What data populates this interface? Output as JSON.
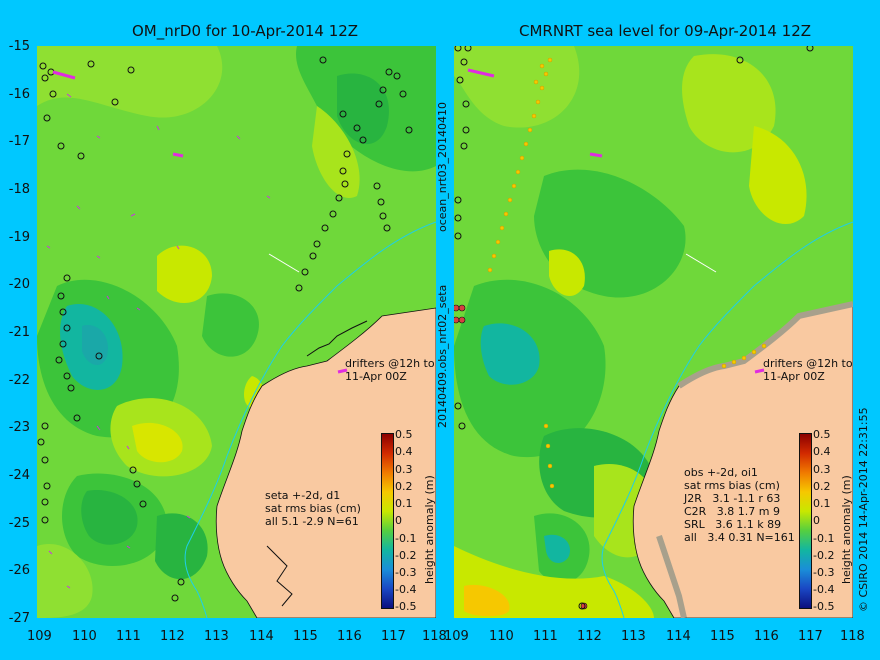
{
  "left_panel": {
    "title": "OM_nrD0 for 10-Apr-2014 12Z",
    "drifters": "drifters @12h to\n11-Apr 00Z",
    "stats": "seta +-2d, d1\nsat rms bias (cm)\nall 5.1 -2.9 N=61"
  },
  "right_panel": {
    "title": "CMRNRT sea level  for 09-Apr-2014 12Z",
    "drifters": "drifters @12h to\n11-Apr 00Z",
    "stats": "obs +-2d, oi1\nsat rms bias (cm)\nJ2R   3.1 -1.1 r 63\nC2R   3.8 1.7 m 9\nSRL   3.6 1.1 k 89\nall   3.4 0.31 N=161"
  },
  "y_axis": [
    "-15",
    "-16",
    "-17",
    "-18",
    "-19",
    "-20",
    "-21",
    "-22",
    "-23",
    "-24",
    "-25",
    "-26",
    "-27"
  ],
  "x_axis_left": [
    "109",
    "110",
    "111",
    "112",
    "113",
    "114",
    "115",
    "116",
    "117",
    "118"
  ],
  "x_axis_right": [
    "109",
    "110",
    "111",
    "112",
    "113",
    "114",
    "115",
    "116",
    "117",
    "118"
  ],
  "colorbar": {
    "label": "height anomaly (m)",
    "ticks": [
      "0.5",
      "0.4",
      "0.3",
      "0.2",
      "0.1",
      "0",
      "-0.1",
      "-0.2",
      "-0.3",
      "-0.4",
      "-0.5"
    ],
    "colors": [
      "#8b0000",
      "#d22a00",
      "#f07a00",
      "#f6c800",
      "#c8e800",
      "#55cf40",
      "#12b6a0",
      "#1a8ed8",
      "#1a47c4",
      "#0c0f7e"
    ]
  },
  "middle_label_top": "ocean_nrt03_20140410",
  "middle_label_bottom": "20140409.obs_nrt02_seta",
  "credit": "© CSIRO 2014   14-Apr-2014 22:31:55",
  "colors": {
    "background": "#00c8ff",
    "land": "#f9c9a1",
    "sea_base": "#6fd83a"
  }
}
